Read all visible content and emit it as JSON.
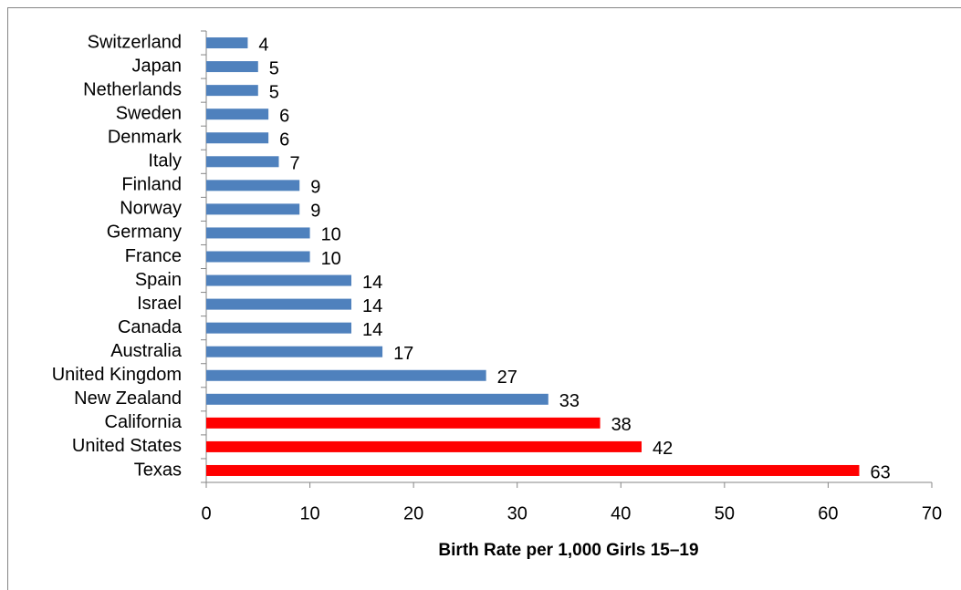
{
  "chart_data": {
    "type": "barh",
    "categories": [
      "Switzerland",
      "Japan",
      "Netherlands",
      "Sweden",
      "Denmark",
      "Italy",
      "Finland",
      "Norway",
      "Germany",
      "France",
      "Spain",
      "Israel",
      "Canada",
      "Australia",
      "United Kingdom",
      "New Zealand",
      "California",
      "United States",
      "Texas"
    ],
    "values": [
      4,
      5,
      5,
      6,
      6,
      7,
      9,
      9,
      10,
      10,
      14,
      14,
      14,
      17,
      27,
      33,
      38,
      42,
      63
    ],
    "colors": [
      "#4f81bd",
      "#4f81bd",
      "#4f81bd",
      "#4f81bd",
      "#4f81bd",
      "#4f81bd",
      "#4f81bd",
      "#4f81bd",
      "#4f81bd",
      "#4f81bd",
      "#4f81bd",
      "#4f81bd",
      "#4f81bd",
      "#4f81bd",
      "#4f81bd",
      "#4f81bd",
      "#ff0000",
      "#ff0000",
      "#ff0000"
    ],
    "xlabel": "Birth Rate per 1,000 Girls 15–19",
    "xlim": [
      0,
      70
    ],
    "xticks": [
      0,
      10,
      20,
      30,
      40,
      50,
      60,
      70
    ],
    "grid": false
  }
}
